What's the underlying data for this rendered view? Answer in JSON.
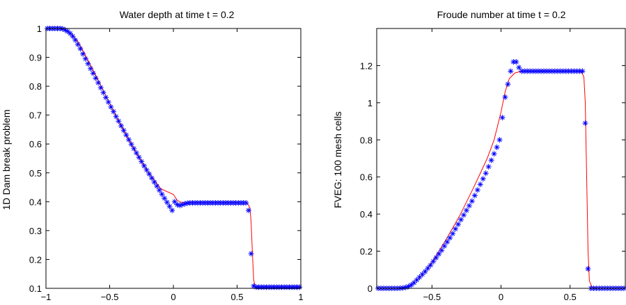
{
  "figure": {
    "panels": [
      {
        "title": "Water depth at time t = 0.2",
        "ylabel": "1D Dam break problem"
      },
      {
        "title": "Froude number at time t = 0.2",
        "ylabel": "FVEG:  100 mesh cells"
      }
    ]
  },
  "chart_data": [
    {
      "type": "line",
      "title": "Water depth at time t = 0.2",
      "xlabel": "",
      "ylabel": "1D Dam break problem",
      "xlim": [
        -1,
        1
      ],
      "ylim": [
        0.1,
        1.0
      ],
      "x_ticks": [
        "−1",
        "−0.5",
        "0",
        "0.5",
        "1"
      ],
      "y_ticks": [
        "0.1",
        "0.2",
        "0.3",
        "0.4",
        "0.5",
        "0.6",
        "0.7",
        "0.8",
        "0.9",
        "1"
      ],
      "x_tick_values": [
        -1,
        -0.5,
        0,
        0.5,
        1
      ],
      "y_tick_values": [
        0.1,
        0.2,
        0.3,
        0.4,
        0.5,
        0.6,
        0.7,
        0.8,
        0.9,
        1.0
      ],
      "grid": false,
      "series": [
        {
          "style": "line",
          "color": "#ff0000",
          "x": [
            -1,
            -0.9,
            -0.85,
            -0.8,
            -0.75,
            -0.7,
            -0.6,
            -0.5,
            -0.4,
            -0.3,
            -0.2,
            -0.1,
            0.0,
            0.03,
            0.06,
            0.1,
            0.15,
            0.3,
            0.5,
            0.58,
            0.6,
            0.61,
            0.62,
            0.63,
            0.64,
            0.66,
            0.7,
            1.0
          ],
          "y": [
            1.0,
            1.0,
            0.995,
            0.98,
            0.955,
            0.915,
            0.83,
            0.74,
            0.655,
            0.575,
            0.505,
            0.445,
            0.425,
            0.405,
            0.398,
            0.396,
            0.397,
            0.397,
            0.397,
            0.395,
            0.38,
            0.33,
            0.22,
            0.13,
            0.108,
            0.104,
            0.104,
            0.104
          ]
        },
        {
          "style": "markers",
          "marker": "*",
          "color": "#0000ff",
          "x": [
            -0.99,
            -0.97,
            -0.95,
            -0.93,
            -0.91,
            -0.89,
            -0.87,
            -0.85,
            -0.83,
            -0.81,
            -0.79,
            -0.77,
            -0.75,
            -0.73,
            -0.71,
            -0.69,
            -0.67,
            -0.65,
            -0.63,
            -0.61,
            -0.59,
            -0.57,
            -0.55,
            -0.53,
            -0.51,
            -0.49,
            -0.47,
            -0.45,
            -0.43,
            -0.41,
            -0.39,
            -0.37,
            -0.35,
            -0.33,
            -0.31,
            -0.29,
            -0.27,
            -0.25,
            -0.23,
            -0.21,
            -0.19,
            -0.17,
            -0.15,
            -0.13,
            -0.11,
            -0.09,
            -0.07,
            -0.05,
            -0.03,
            -0.01,
            0.01,
            0.03,
            0.05,
            0.07,
            0.09,
            0.11,
            0.13,
            0.15,
            0.17,
            0.19,
            0.21,
            0.23,
            0.25,
            0.27,
            0.29,
            0.31,
            0.33,
            0.35,
            0.37,
            0.39,
            0.41,
            0.43,
            0.45,
            0.47,
            0.49,
            0.51,
            0.53,
            0.55,
            0.57,
            0.59,
            0.61,
            0.63,
            0.65,
            0.67,
            0.69,
            0.71,
            0.73,
            0.75,
            0.77,
            0.79,
            0.81,
            0.83,
            0.85,
            0.87,
            0.89,
            0.91,
            0.93,
            0.95,
            0.97,
            0.99
          ],
          "y": [
            1.0,
            1.0,
            1.0,
            1.0,
            1.0,
            1.0,
            0.999,
            0.995,
            0.99,
            0.983,
            0.973,
            0.96,
            0.945,
            0.93,
            0.912,
            0.895,
            0.878,
            0.861,
            0.845,
            0.828,
            0.812,
            0.795,
            0.778,
            0.761,
            0.745,
            0.728,
            0.712,
            0.695,
            0.679,
            0.663,
            0.647,
            0.631,
            0.615,
            0.599,
            0.584,
            0.569,
            0.554,
            0.539,
            0.524,
            0.51,
            0.496,
            0.482,
            0.468,
            0.454,
            0.44,
            0.426,
            0.412,
            0.398,
            0.384,
            0.37,
            0.4,
            0.39,
            0.387,
            0.39,
            0.393,
            0.395,
            0.396,
            0.396,
            0.396,
            0.396,
            0.396,
            0.396,
            0.396,
            0.396,
            0.396,
            0.396,
            0.396,
            0.396,
            0.396,
            0.396,
            0.396,
            0.396,
            0.396,
            0.396,
            0.396,
            0.396,
            0.396,
            0.396,
            0.396,
            0.37,
            0.22,
            0.108,
            0.104,
            0.104,
            0.104,
            0.104,
            0.104,
            0.104,
            0.104,
            0.104,
            0.104,
            0.104,
            0.104,
            0.104,
            0.104,
            0.104,
            0.104,
            0.104,
            0.104,
            0.104
          ]
        }
      ]
    },
    {
      "type": "line",
      "title": "Froude number at time t = 0.2",
      "xlabel": "",
      "ylabel": "FVEG:  100 mesh cells",
      "xlim": [
        -0.9,
        0.9
      ],
      "ylim": [
        0,
        1.4
      ],
      "x_ticks": [
        "−0.5",
        "0",
        "0.5"
      ],
      "y_ticks": [
        "0",
        "0.2",
        "0.4",
        "0.6",
        "0.8",
        "1",
        "1.2"
      ],
      "x_tick_values": [
        -0.5,
        0,
        0.5
      ],
      "y_tick_values": [
        0,
        0.2,
        0.4,
        0.6,
        0.8,
        1.0,
        1.2
      ],
      "grid": false,
      "series": [
        {
          "style": "line",
          "color": "#ff0000",
          "x": [
            -0.9,
            -0.75,
            -0.7,
            -0.65,
            -0.6,
            -0.55,
            -0.5,
            -0.4,
            -0.3,
            -0.2,
            -0.1,
            -0.05,
            0.0,
            0.03,
            0.06,
            0.1,
            0.15,
            0.3,
            0.5,
            0.58,
            0.6,
            0.61,
            0.62,
            0.63,
            0.64,
            0.66,
            0.7,
            0.9
          ],
          "y": [
            0,
            0,
            0.005,
            0.02,
            0.05,
            0.09,
            0.14,
            0.26,
            0.39,
            0.54,
            0.7,
            0.8,
            0.95,
            1.06,
            1.13,
            1.16,
            1.17,
            1.17,
            1.17,
            1.17,
            1.14,
            1.0,
            0.6,
            0.2,
            0.04,
            0.005,
            0,
            0
          ]
        },
        {
          "style": "markers",
          "marker": "*",
          "color": "#0000ff",
          "x": [
            -0.89,
            -0.87,
            -0.85,
            -0.83,
            -0.81,
            -0.79,
            -0.77,
            -0.75,
            -0.73,
            -0.71,
            -0.69,
            -0.67,
            -0.65,
            -0.63,
            -0.61,
            -0.59,
            -0.57,
            -0.55,
            -0.53,
            -0.51,
            -0.49,
            -0.47,
            -0.45,
            -0.43,
            -0.41,
            -0.39,
            -0.37,
            -0.35,
            -0.33,
            -0.31,
            -0.29,
            -0.27,
            -0.25,
            -0.23,
            -0.21,
            -0.19,
            -0.17,
            -0.15,
            -0.13,
            -0.11,
            -0.09,
            -0.07,
            -0.05,
            -0.03,
            -0.01,
            0.01,
            0.03,
            0.05,
            0.07,
            0.09,
            0.11,
            0.13,
            0.15,
            0.17,
            0.19,
            0.21,
            0.23,
            0.25,
            0.27,
            0.29,
            0.31,
            0.33,
            0.35,
            0.37,
            0.39,
            0.41,
            0.43,
            0.45,
            0.47,
            0.49,
            0.51,
            0.53,
            0.55,
            0.57,
            0.59,
            0.61,
            0.63,
            0.65,
            0.67,
            0.69,
            0.71,
            0.73,
            0.75,
            0.77,
            0.79,
            0.81,
            0.83,
            0.85,
            0.87,
            0.89
          ],
          "y": [
            0,
            0,
            0,
            0,
            0,
            0,
            0,
            0,
            0.001,
            0.002,
            0.005,
            0.01,
            0.018,
            0.03,
            0.045,
            0.06,
            0.075,
            0.09,
            0.108,
            0.125,
            0.145,
            0.165,
            0.185,
            0.205,
            0.228,
            0.25,
            0.272,
            0.295,
            0.32,
            0.345,
            0.37,
            0.395,
            0.42,
            0.445,
            0.47,
            0.5,
            0.53,
            0.56,
            0.59,
            0.62,
            0.655,
            0.69,
            0.725,
            0.76,
            0.8,
            0.92,
            1.03,
            1.1,
            1.17,
            1.22,
            1.22,
            1.19,
            1.17,
            1.17,
            1.17,
            1.17,
            1.17,
            1.17,
            1.17,
            1.17,
            1.17,
            1.17,
            1.17,
            1.17,
            1.17,
            1.17,
            1.17,
            1.17,
            1.17,
            1.17,
            1.17,
            1.17,
            1.17,
            1.17,
            1.17,
            0.89,
            0.105,
            0,
            0,
            0,
            0,
            0,
            0,
            0,
            0,
            0,
            0,
            0,
            0,
            0
          ]
        }
      ]
    }
  ]
}
